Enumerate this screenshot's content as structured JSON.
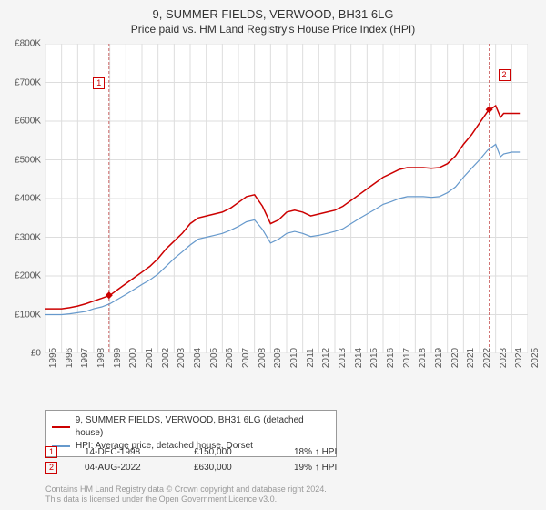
{
  "title": "9, SUMMER FIELDS, VERWOOD, BH31 6LG",
  "subtitle": "Price paid vs. HM Land Registry's House Price Index (HPI)",
  "chart": {
    "type": "line",
    "background_color": "#ffffff",
    "border_color": "#bbbbbb",
    "grid_color": "#dddddd",
    "ylabel_prefix": "£",
    "ylim": [
      0,
      800000
    ],
    "ytick_step": 100000,
    "yticks": [
      "£0",
      "£100K",
      "£200K",
      "£300K",
      "£400K",
      "£500K",
      "£600K",
      "£700K",
      "£800K"
    ],
    "xlim": [
      1995,
      2025
    ],
    "xticks": [
      1995,
      1996,
      1997,
      1998,
      1999,
      2000,
      2001,
      2002,
      2003,
      2004,
      2005,
      2006,
      2007,
      2008,
      2009,
      2010,
      2011,
      2012,
      2013,
      2014,
      2015,
      2016,
      2017,
      2018,
      2019,
      2020,
      2021,
      2022,
      2023,
      2024,
      2025
    ],
    "label_fontsize": 10,
    "series": [
      {
        "name": "9, SUMMER FIELDS, VERWOOD, BH31 6LG (detached house)",
        "color": "#cc0000",
        "line_width": 1.5,
        "data": [
          [
            1995,
            115000
          ],
          [
            1995.5,
            115000
          ],
          [
            1996,
            115000
          ],
          [
            1996.5,
            118000
          ],
          [
            1997,
            122000
          ],
          [
            1997.5,
            128000
          ],
          [
            1998,
            135000
          ],
          [
            1998.5,
            142000
          ],
          [
            1999,
            150000
          ],
          [
            1999.5,
            165000
          ],
          [
            2000,
            180000
          ],
          [
            2000.5,
            195000
          ],
          [
            2001,
            210000
          ],
          [
            2001.5,
            225000
          ],
          [
            2002,
            245000
          ],
          [
            2002.5,
            270000
          ],
          [
            2003,
            290000
          ],
          [
            2003.5,
            310000
          ],
          [
            2004,
            335000
          ],
          [
            2004.5,
            350000
          ],
          [
            2005,
            355000
          ],
          [
            2005.5,
            360000
          ],
          [
            2006,
            365000
          ],
          [
            2006.5,
            375000
          ],
          [
            2007,
            390000
          ],
          [
            2007.5,
            405000
          ],
          [
            2008,
            410000
          ],
          [
            2008.5,
            380000
          ],
          [
            2009,
            335000
          ],
          [
            2009.5,
            345000
          ],
          [
            2010,
            365000
          ],
          [
            2010.5,
            370000
          ],
          [
            2011,
            365000
          ],
          [
            2011.5,
            355000
          ],
          [
            2012,
            360000
          ],
          [
            2012.5,
            365000
          ],
          [
            2013,
            370000
          ],
          [
            2013.5,
            380000
          ],
          [
            2014,
            395000
          ],
          [
            2014.5,
            410000
          ],
          [
            2015,
            425000
          ],
          [
            2015.5,
            440000
          ],
          [
            2016,
            455000
          ],
          [
            2016.5,
            465000
          ],
          [
            2017,
            475000
          ],
          [
            2017.5,
            480000
          ],
          [
            2018,
            480000
          ],
          [
            2018.5,
            480000
          ],
          [
            2019,
            478000
          ],
          [
            2019.5,
            480000
          ],
          [
            2020,
            490000
          ],
          [
            2020.5,
            510000
          ],
          [
            2021,
            540000
          ],
          [
            2021.5,
            565000
          ],
          [
            2022,
            595000
          ],
          [
            2022.5,
            625000
          ],
          [
            2023,
            640000
          ],
          [
            2023.3,
            610000
          ],
          [
            2023.5,
            620000
          ],
          [
            2024,
            620000
          ],
          [
            2024.5,
            620000
          ]
        ]
      },
      {
        "name": "HPI: Average price, detached house, Dorset",
        "color": "#6699cc",
        "line_width": 1.2,
        "data": [
          [
            1995,
            100000
          ],
          [
            1995.5,
            100000
          ],
          [
            1996,
            100000
          ],
          [
            1996.5,
            102000
          ],
          [
            1997,
            105000
          ],
          [
            1997.5,
            108000
          ],
          [
            1998,
            115000
          ],
          [
            1998.5,
            120000
          ],
          [
            1999,
            128000
          ],
          [
            1999.5,
            140000
          ],
          [
            2000,
            152000
          ],
          [
            2000.5,
            165000
          ],
          [
            2001,
            178000
          ],
          [
            2001.5,
            190000
          ],
          [
            2002,
            205000
          ],
          [
            2002.5,
            225000
          ],
          [
            2003,
            245000
          ],
          [
            2003.5,
            262000
          ],
          [
            2004,
            280000
          ],
          [
            2004.5,
            295000
          ],
          [
            2005,
            300000
          ],
          [
            2005.5,
            305000
          ],
          [
            2006,
            310000
          ],
          [
            2006.5,
            318000
          ],
          [
            2007,
            328000
          ],
          [
            2007.5,
            340000
          ],
          [
            2008,
            345000
          ],
          [
            2008.5,
            320000
          ],
          [
            2009,
            285000
          ],
          [
            2009.5,
            295000
          ],
          [
            2010,
            310000
          ],
          [
            2010.5,
            315000
          ],
          [
            2011,
            310000
          ],
          [
            2011.5,
            302000
          ],
          [
            2012,
            305000
          ],
          [
            2012.5,
            310000
          ],
          [
            2013,
            315000
          ],
          [
            2013.5,
            322000
          ],
          [
            2014,
            335000
          ],
          [
            2014.5,
            348000
          ],
          [
            2015,
            360000
          ],
          [
            2015.5,
            372000
          ],
          [
            2016,
            385000
          ],
          [
            2016.5,
            392000
          ],
          [
            2017,
            400000
          ],
          [
            2017.5,
            405000
          ],
          [
            2018,
            405000
          ],
          [
            2018.5,
            405000
          ],
          [
            2019,
            403000
          ],
          [
            2019.5,
            405000
          ],
          [
            2020,
            415000
          ],
          [
            2020.5,
            430000
          ],
          [
            2021,
            455000
          ],
          [
            2021.5,
            478000
          ],
          [
            2022,
            500000
          ],
          [
            2022.5,
            525000
          ],
          [
            2023,
            540000
          ],
          [
            2023.3,
            508000
          ],
          [
            2023.5,
            515000
          ],
          [
            2024,
            520000
          ],
          [
            2024.5,
            520000
          ]
        ]
      }
    ],
    "markers": [
      {
        "id": "1",
        "x_line": 1998.95,
        "box_year": 1998.3,
        "box_y_value": 700000,
        "point_x": 1998.95,
        "point_y": 150000
      },
      {
        "id": "2",
        "x_line": 2022.6,
        "box_year": 2023.5,
        "box_y_value": 720000,
        "point_x": 2022.6,
        "point_y": 630000
      }
    ],
    "marker_line_color": "#cc6666",
    "marker_line_dash": "3,2",
    "marker_point_color": "#cc0000",
    "marker_box_border": "#cc0000"
  },
  "legend": {
    "border_color": "#999999",
    "background": "#ffffff",
    "fontsize": 10,
    "items": [
      {
        "color": "#cc0000",
        "label": "9, SUMMER FIELDS, VERWOOD, BH31 6LG (detached house)"
      },
      {
        "color": "#6699cc",
        "label": "HPI: Average price, detached house, Dorset"
      }
    ]
  },
  "marker_rows": [
    {
      "id": "1",
      "date": "14-DEC-1998",
      "price": "£150,000",
      "pct": "18% ↑ HPI"
    },
    {
      "id": "2",
      "date": "04-AUG-2022",
      "price": "£630,000",
      "pct": "19% ↑ HPI"
    }
  ],
  "footnote_line1": "Contains HM Land Registry data © Crown copyright and database right 2024.",
  "footnote_line2": "This data is licensed under the Open Government Licence v3.0."
}
